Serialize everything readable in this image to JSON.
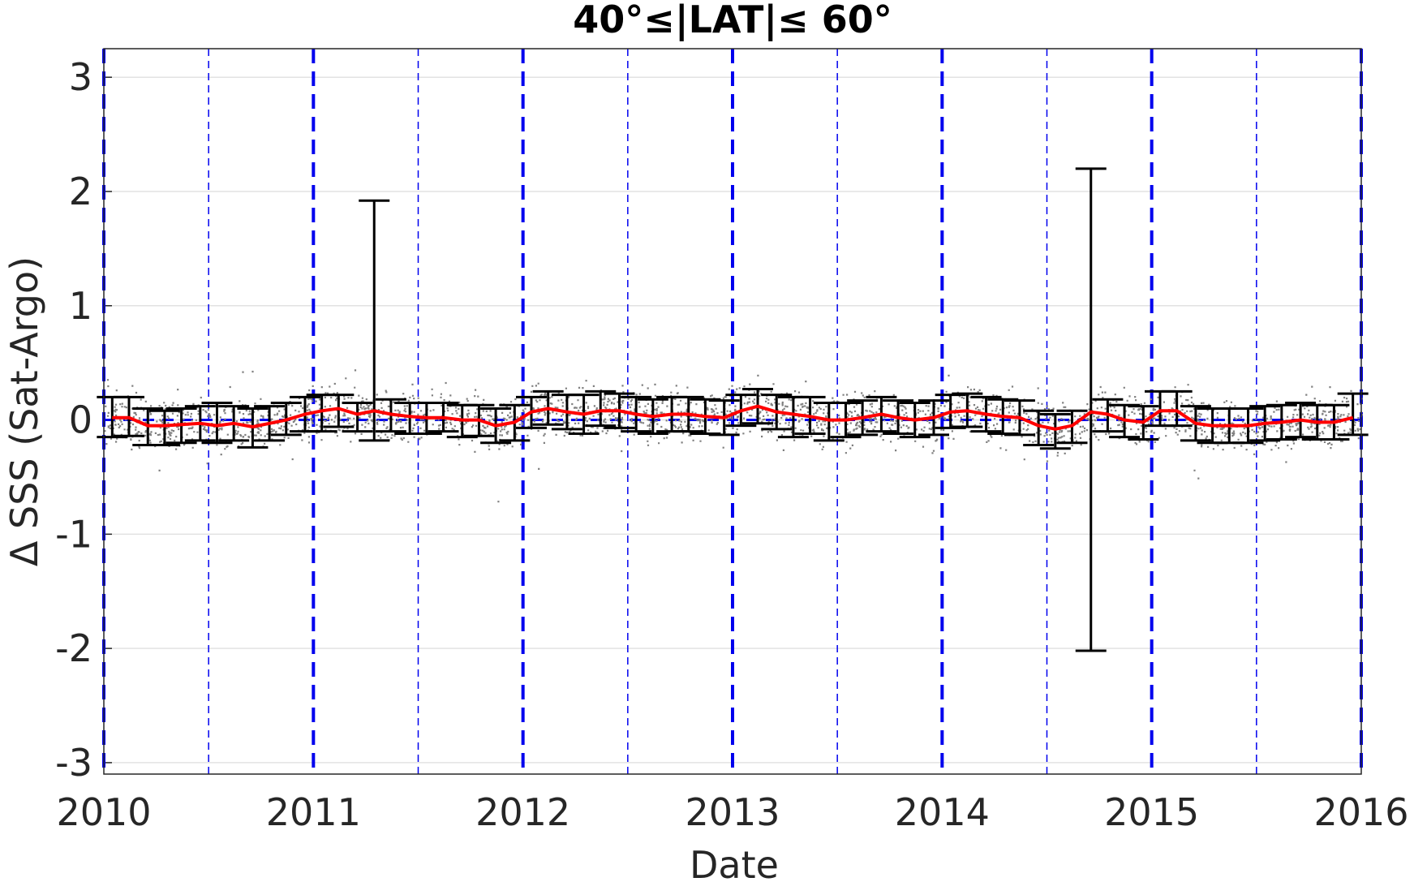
{
  "chart_data": {
    "type": "scatter",
    "title": "40°≤|LAT|≤ 60°",
    "xlabel": "Date",
    "ylabel": "Δ SSS (Sat-Argo)",
    "xlim": [
      2010,
      2016
    ],
    "ylim": [
      -3.1,
      3.25
    ],
    "x_ticks": [
      "2010",
      "2011",
      "2012",
      "2013",
      "2014",
      "2015",
      "2016"
    ],
    "y_ticks": [
      "-3",
      "-2",
      "-1",
      "0",
      "1",
      "2",
      "3"
    ],
    "grid": true,
    "year_lines": [
      2010,
      2011,
      2012,
      2013,
      2014,
      2015,
      2016
    ],
    "half_year_lines": [
      2010.5,
      2011.5,
      2012.5,
      2013.5,
      2014.5,
      2015.5
    ],
    "colors": {
      "scatter": "#808080",
      "median_line": "#ff0000",
      "year_line": "#0000ee",
      "errorbar": "#000000",
      "zero_line": "#0000ee"
    },
    "series": [
      {
        "type": "line",
        "x": [
          2010.04,
          2010.12,
          2010.21,
          2010.29,
          2010.37,
          2010.46,
          2010.54,
          2010.62,
          2010.71,
          2010.79,
          2010.87,
          2010.96,
          2011.04,
          2011.12,
          2011.21,
          2011.29,
          2011.37,
          2011.46,
          2011.54,
          2011.62,
          2011.71,
          2011.79,
          2011.87,
          2011.96,
          2012.04,
          2012.12,
          2012.21,
          2012.29,
          2012.37,
          2012.46,
          2012.54,
          2012.62,
          2012.71,
          2012.79,
          2012.87,
          2012.96,
          2013.04,
          2013.12,
          2013.21,
          2013.29,
          2013.37,
          2013.46,
          2013.54,
          2013.62,
          2013.71,
          2013.79,
          2013.87,
          2013.96,
          2014.04,
          2014.12,
          2014.21,
          2014.29,
          2014.37,
          2014.46,
          2014.54,
          2014.62,
          2014.71,
          2014.79,
          2014.87,
          2014.96,
          2015.04,
          2015.12,
          2015.21,
          2015.29,
          2015.37,
          2015.46,
          2015.54,
          2015.62,
          2015.71,
          2015.79,
          2015.87,
          2015.96
        ],
        "y": [
          0.02,
          0.02,
          -0.05,
          -0.05,
          -0.04,
          -0.03,
          -0.05,
          -0.03,
          -0.06,
          -0.03,
          0.0,
          0.05,
          0.08,
          0.1,
          0.05,
          0.08,
          0.05,
          0.03,
          0.02,
          0.02,
          0.0,
          0.0,
          -0.05,
          -0.02,
          0.07,
          0.1,
          0.07,
          0.05,
          0.08,
          0.08,
          0.05,
          0.03,
          0.05,
          0.05,
          0.03,
          0.02,
          0.08,
          0.12,
          0.07,
          0.05,
          0.03,
          0.0,
          0.0,
          0.02,
          0.05,
          0.02,
          0.0,
          0.02,
          0.07,
          0.08,
          0.05,
          0.03,
          0.02,
          -0.05,
          -0.08,
          -0.05,
          0.07,
          0.05,
          0.0,
          -0.02,
          0.08,
          0.08,
          -0.03,
          -0.05,
          -0.05,
          -0.05,
          -0.03,
          -0.02,
          0.0,
          -0.02,
          -0.02,
          0.02
        ]
      },
      {
        "type": "errorbar",
        "x": [
          2010.04,
          2010.12,
          2010.21,
          2010.29,
          2010.37,
          2010.46,
          2010.54,
          2010.62,
          2010.71,
          2010.79,
          2010.87,
          2010.96,
          2011.04,
          2011.12,
          2011.21,
          2011.29,
          2011.37,
          2011.46,
          2011.54,
          2011.62,
          2011.71,
          2011.79,
          2011.87,
          2011.96,
          2012.04,
          2012.12,
          2012.21,
          2012.29,
          2012.37,
          2012.46,
          2012.54,
          2012.62,
          2012.71,
          2012.79,
          2012.87,
          2012.96,
          2013.04,
          2013.12,
          2013.21,
          2013.29,
          2013.37,
          2013.46,
          2013.54,
          2013.62,
          2013.71,
          2013.79,
          2013.87,
          2013.96,
          2014.04,
          2014.12,
          2014.21,
          2014.29,
          2014.37,
          2014.46,
          2014.54,
          2014.62,
          2014.71,
          2014.79,
          2014.87,
          2014.96,
          2015.04,
          2015.12,
          2015.21,
          2015.29,
          2015.37,
          2015.46,
          2015.54,
          2015.62,
          2015.71,
          2015.79,
          2015.87,
          2015.96
        ],
        "low": [
          -0.15,
          -0.14,
          -0.22,
          -0.22,
          -0.2,
          -0.18,
          -0.2,
          -0.18,
          -0.24,
          -0.18,
          -0.13,
          -0.1,
          -0.1,
          -0.06,
          -0.1,
          -0.18,
          -0.1,
          -0.12,
          -0.12,
          -0.1,
          -0.15,
          -0.14,
          -0.2,
          -0.18,
          -0.07,
          -0.04,
          -0.08,
          -0.12,
          -0.05,
          -0.07,
          -0.1,
          -0.12,
          -0.1,
          -0.1,
          -0.12,
          -0.13,
          -0.05,
          -0.03,
          -0.08,
          -0.15,
          -0.12,
          -0.18,
          -0.15,
          -0.13,
          -0.1,
          -0.12,
          -0.15,
          -0.13,
          -0.07,
          -0.06,
          -0.1,
          -0.12,
          -0.13,
          -0.22,
          -0.25,
          -0.2,
          -2.02,
          -0.1,
          -0.15,
          -0.17,
          -0.05,
          -0.05,
          -0.18,
          -0.2,
          -0.2,
          -0.2,
          -0.18,
          -0.17,
          -0.15,
          -0.17,
          -0.17,
          -0.13
        ],
        "high": [
          0.2,
          0.2,
          0.1,
          0.08,
          0.1,
          0.12,
          0.15,
          0.12,
          0.1,
          0.12,
          0.15,
          0.2,
          0.22,
          0.22,
          0.15,
          1.92,
          0.18,
          0.15,
          0.15,
          0.15,
          0.13,
          0.13,
          0.1,
          0.13,
          0.2,
          0.25,
          0.22,
          0.22,
          0.25,
          0.23,
          0.2,
          0.18,
          0.2,
          0.2,
          0.18,
          0.17,
          0.22,
          0.27,
          0.22,
          0.2,
          0.2,
          0.15,
          0.15,
          0.17,
          0.2,
          0.17,
          0.15,
          0.17,
          0.22,
          0.23,
          0.2,
          0.18,
          0.17,
          0.08,
          0.05,
          0.08,
          2.2,
          0.18,
          0.13,
          0.12,
          0.25,
          0.25,
          0.12,
          0.1,
          0.1,
          0.1,
          0.12,
          0.13,
          0.15,
          0.13,
          0.13,
          0.23
        ]
      }
    ]
  }
}
